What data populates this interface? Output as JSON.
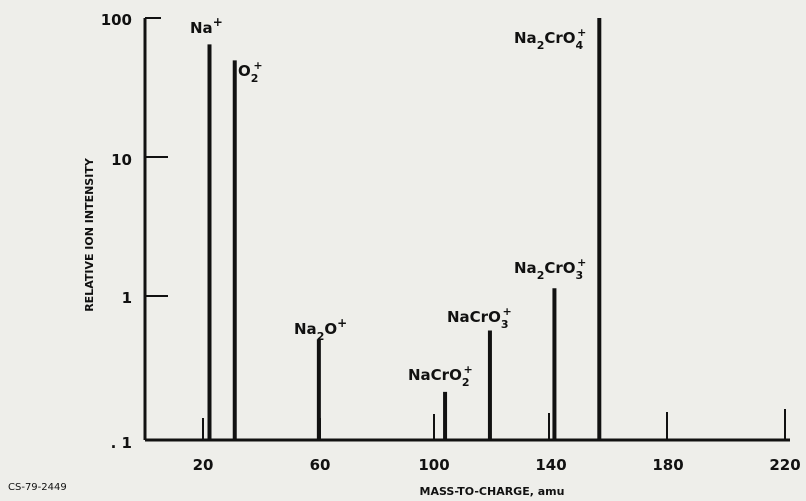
{
  "chart_data": {
    "type": "bar",
    "x_range": [
      0,
      230
    ],
    "ylim": [
      0.1,
      100
    ],
    "y_scale": "log",
    "xlabel": "MASS-TO-CHARGE, amu",
    "ylabel": "RELATIVE ION INTENSITY",
    "x_ticks": [
      "20",
      "60",
      "100",
      "140",
      "180",
      "220"
    ],
    "y_ticks": [
      "100",
      "10",
      "1",
      ". 1"
    ],
    "points": [
      {
        "x": 23,
        "y": 65,
        "label": "Na"
      },
      {
        "x": 32,
        "y": 50,
        "label": "O"
      },
      {
        "x": 62,
        "y": 0.52,
        "label": "Na2O"
      },
      {
        "x": 107,
        "y": 0.22,
        "label": "NaCrO2"
      },
      {
        "x": 123,
        "y": 0.6,
        "label": "NaCrO3"
      },
      {
        "x": 146,
        "y": 1.2,
        "label": "Na2CrO3"
      },
      {
        "x": 162,
        "y": 100,
        "label": "Na2CrO4"
      }
    ],
    "annotation": "CS-79-2449"
  }
}
